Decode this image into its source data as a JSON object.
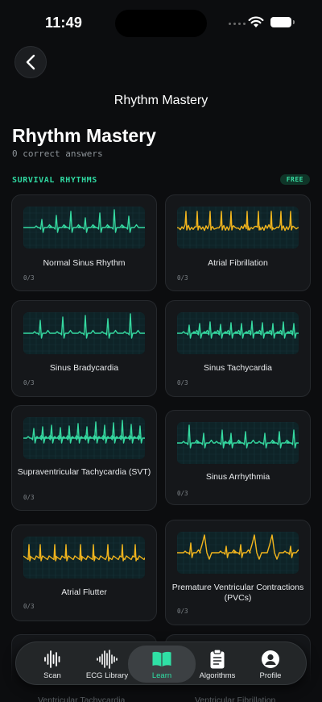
{
  "status_bar": {
    "time": "11:49"
  },
  "header": {
    "title": "Rhythm Mastery"
  },
  "page": {
    "title": "Rhythm Mastery",
    "subtitle": "0 correct answers"
  },
  "section": {
    "label": "SURVIVAL RHYTHMS",
    "badge": "FREE"
  },
  "cards": [
    {
      "title": "Normal Sinus Rhythm",
      "score": "0/3",
      "color": "#35d9a0",
      "trace": "nsr"
    },
    {
      "title": "Atrial Fibrillation",
      "score": "0/3",
      "color": "#f2b51d",
      "trace": "afib"
    },
    {
      "title": "Sinus Bradycardia",
      "score": "0/3",
      "color": "#35d9a0",
      "trace": "brady"
    },
    {
      "title": "Sinus Tachycardia",
      "score": "0/3",
      "color": "#35d9a0",
      "trace": "tachy"
    },
    {
      "title": "Supraventricular Tachycardia (SVT)",
      "score": "0/3",
      "color": "#35d9a0",
      "trace": "svt"
    },
    {
      "title": "Sinus Arrhythmia",
      "score": "0/3",
      "color": "#35d9a0",
      "trace": "arrhythmia"
    },
    {
      "title": "Atrial Flutter",
      "score": "0/3",
      "color": "#f2b51d",
      "trace": "flutter"
    },
    {
      "title": "Premature Ventricular Contractions (PVCs)",
      "score": "0/3",
      "color": "#f2b51d",
      "trace": "pvc"
    }
  ],
  "partial_cards": [
    {
      "title": "Ventricular Tachycardia"
    },
    {
      "title": "Ventricular Fibrillation"
    }
  ],
  "tabs": [
    {
      "label": "Scan",
      "icon": "waveform-icon",
      "active": false
    },
    {
      "label": "ECG Library",
      "icon": "ecg-wave-icon",
      "active": false
    },
    {
      "label": "Learn",
      "icon": "book-icon",
      "active": true
    },
    {
      "label": "Algorithms",
      "icon": "clipboard-icon",
      "active": false
    },
    {
      "label": "Profile",
      "icon": "person-icon",
      "active": false
    }
  ],
  "colors": {
    "accent": "#2fe0a5",
    "warning": "#f2b51d",
    "background": "#0c0d0f"
  }
}
